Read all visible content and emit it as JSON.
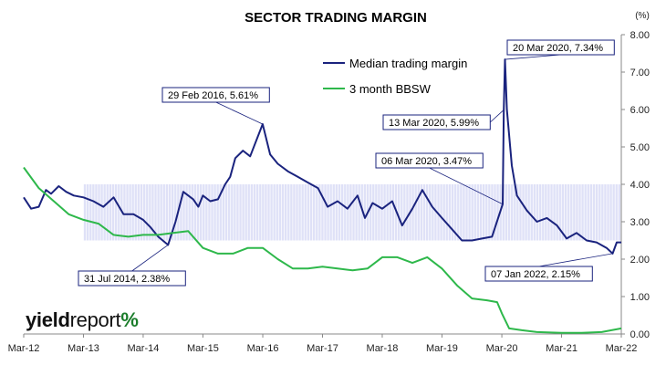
{
  "chart_data": {
    "type": "line",
    "title": "SECTOR TRADING MARGIN",
    "unit_label": "(%)",
    "ylim": [
      0,
      8
    ],
    "y_ticks": [
      "0.00",
      "1.00",
      "2.00",
      "3.00",
      "4.00",
      "5.00",
      "6.00",
      "7.00",
      "8.00"
    ],
    "x_ticks": [
      "Mar-12",
      "Mar-13",
      "Mar-14",
      "Mar-15",
      "Mar-16",
      "Mar-17",
      "Mar-18",
      "Mar-19",
      "Mar-20",
      "Mar-21",
      "Mar-22"
    ],
    "x_range": [
      "2012-03",
      "2022-03"
    ],
    "shaded_band": {
      "from": "2013-03",
      "to": "2022-03",
      "y_low": 2.5,
      "y_high": 4.0,
      "color": "#c5c8f0"
    },
    "legend": {
      "position": "top-center"
    },
    "series": [
      {
        "name": "Median trading margin",
        "color": "#1a237e",
        "points": [
          [
            "2012-03-01",
            3.65
          ],
          [
            "2012-04-15",
            3.35
          ],
          [
            "2012-06-01",
            3.4
          ],
          [
            "2012-07-15",
            3.85
          ],
          [
            "2012-08-15",
            3.75
          ],
          [
            "2012-10-01",
            3.95
          ],
          [
            "2012-11-15",
            3.8
          ],
          [
            "2013-01-01",
            3.7
          ],
          [
            "2013-03-01",
            3.65
          ],
          [
            "2013-05-01",
            3.55
          ],
          [
            "2013-07-01",
            3.4
          ],
          [
            "2013-09-01",
            3.65
          ],
          [
            "2013-11-01",
            3.2
          ],
          [
            "2014-01-01",
            3.2
          ],
          [
            "2014-03-01",
            3.05
          ],
          [
            "2014-04-15",
            2.85
          ],
          [
            "2014-06-01",
            2.6
          ],
          [
            "2014-07-31",
            2.38
          ],
          [
            "2014-09-15",
            3.0
          ],
          [
            "2014-11-01",
            3.8
          ],
          [
            "2015-01-01",
            3.6
          ],
          [
            "2015-02-01",
            3.4
          ],
          [
            "2015-03-01",
            3.7
          ],
          [
            "2015-04-15",
            3.55
          ],
          [
            "2015-06-01",
            3.6
          ],
          [
            "2015-07-15",
            4.0
          ],
          [
            "2015-08-15",
            4.2
          ],
          [
            "2015-09-15",
            4.7
          ],
          [
            "2015-11-01",
            4.9
          ],
          [
            "2015-12-15",
            4.75
          ],
          [
            "2016-02-29",
            5.61
          ],
          [
            "2016-04-15",
            4.8
          ],
          [
            "2016-06-01",
            4.55
          ],
          [
            "2016-08-01",
            4.35
          ],
          [
            "2016-10-01",
            4.2
          ],
          [
            "2016-12-01",
            4.05
          ],
          [
            "2017-02-01",
            3.9
          ],
          [
            "2017-04-01",
            3.4
          ],
          [
            "2017-06-01",
            3.55
          ],
          [
            "2017-08-01",
            3.35
          ],
          [
            "2017-10-01",
            3.7
          ],
          [
            "2017-11-15",
            3.1
          ],
          [
            "2018-01-01",
            3.5
          ],
          [
            "2018-03-01",
            3.35
          ],
          [
            "2018-05-01",
            3.55
          ],
          [
            "2018-07-01",
            2.9
          ],
          [
            "2018-09-01",
            3.35
          ],
          [
            "2018-11-01",
            3.85
          ],
          [
            "2019-01-01",
            3.4
          ],
          [
            "2019-03-01",
            3.1
          ],
          [
            "2019-05-01",
            2.8
          ],
          [
            "2019-07-01",
            2.5
          ],
          [
            "2019-09-01",
            2.5
          ],
          [
            "2019-11-01",
            2.55
          ],
          [
            "2020-01-01",
            2.6
          ],
          [
            "2020-03-06",
            3.47
          ],
          [
            "2020-03-13",
            5.99
          ],
          [
            "2020-03-20",
            7.34
          ],
          [
            "2020-04-01",
            6.0
          ],
          [
            "2020-05-01",
            4.5
          ],
          [
            "2020-06-01",
            3.7
          ],
          [
            "2020-08-01",
            3.3
          ],
          [
            "2020-10-01",
            3.0
          ],
          [
            "2020-12-01",
            3.1
          ],
          [
            "2021-02-01",
            2.9
          ],
          [
            "2021-04-01",
            2.55
          ],
          [
            "2021-06-01",
            2.7
          ],
          [
            "2021-08-01",
            2.5
          ],
          [
            "2021-10-01",
            2.45
          ],
          [
            "2021-12-01",
            2.3
          ],
          [
            "2022-01-07",
            2.15
          ],
          [
            "2022-02-01",
            2.45
          ],
          [
            "2022-03-01",
            2.45
          ]
        ]
      },
      {
        "name": "3 month BBSW",
        "color": "#2eb84b",
        "points": [
          [
            "2012-03-01",
            4.45
          ],
          [
            "2012-06-01",
            3.9
          ],
          [
            "2012-09-01",
            3.55
          ],
          [
            "2012-12-01",
            3.2
          ],
          [
            "2013-03-01",
            3.05
          ],
          [
            "2013-06-01",
            2.95
          ],
          [
            "2013-09-01",
            2.65
          ],
          [
            "2013-12-01",
            2.6
          ],
          [
            "2014-03-01",
            2.65
          ],
          [
            "2014-06-01",
            2.65
          ],
          [
            "2014-09-01",
            2.7
          ],
          [
            "2014-12-01",
            2.75
          ],
          [
            "2015-03-01",
            2.3
          ],
          [
            "2015-06-01",
            2.15
          ],
          [
            "2015-09-01",
            2.15
          ],
          [
            "2015-12-01",
            2.3
          ],
          [
            "2016-03-01",
            2.3
          ],
          [
            "2016-06-01",
            2.0
          ],
          [
            "2016-09-01",
            1.75
          ],
          [
            "2016-12-01",
            1.75
          ],
          [
            "2017-03-01",
            1.8
          ],
          [
            "2017-06-01",
            1.75
          ],
          [
            "2017-09-01",
            1.7
          ],
          [
            "2017-12-01",
            1.75
          ],
          [
            "2018-03-01",
            2.05
          ],
          [
            "2018-06-01",
            2.05
          ],
          [
            "2018-09-01",
            1.9
          ],
          [
            "2018-12-01",
            2.05
          ],
          [
            "2019-03-01",
            1.75
          ],
          [
            "2019-06-01",
            1.3
          ],
          [
            "2019-09-01",
            0.95
          ],
          [
            "2019-12-01",
            0.9
          ],
          [
            "2020-02-01",
            0.85
          ],
          [
            "2020-03-01",
            0.55
          ],
          [
            "2020-04-15",
            0.15
          ],
          [
            "2020-07-01",
            0.1
          ],
          [
            "2020-10-01",
            0.05
          ],
          [
            "2021-03-01",
            0.03
          ],
          [
            "2021-07-01",
            0.03
          ],
          [
            "2021-11-01",
            0.05
          ],
          [
            "2022-03-01",
            0.15
          ]
        ]
      }
    ],
    "annotations": [
      {
        "label": "29 Feb 2016, 5.61%",
        "x": "2016-02-29",
        "y": 5.61
      },
      {
        "label": "31 Jul 2014, 2.38%",
        "x": "2014-07-31",
        "y": 2.38
      },
      {
        "label": "06 Mar 2020, 3.47%",
        "x": "2020-03-06",
        "y": 3.47
      },
      {
        "label": "13 Mar 2020, 5.99%",
        "x": "2020-03-13",
        "y": 5.99
      },
      {
        "label": "20 Mar 2020, 7.34%",
        "x": "2020-03-20",
        "y": 7.34
      },
      {
        "label": "07 Jan 2022, 2.15%",
        "x": "2022-01-07",
        "y": 2.15
      }
    ]
  },
  "logo": {
    "part1": "yield",
    "part2": "report",
    "symbol": "%"
  }
}
